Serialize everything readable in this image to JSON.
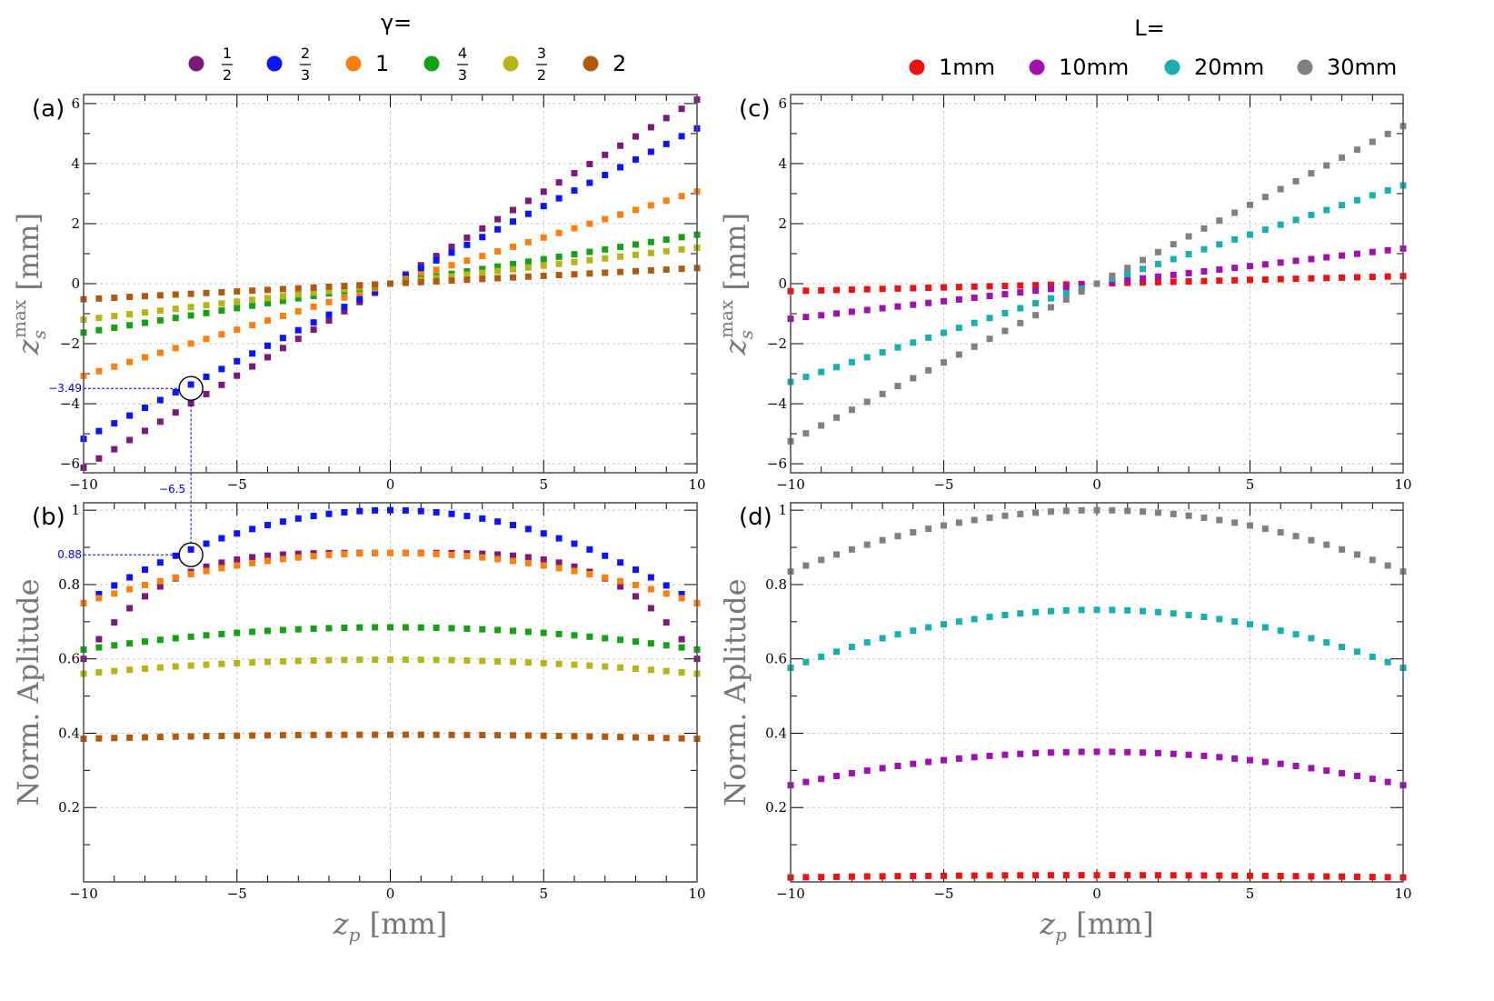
{
  "legends": {
    "gamma": {
      "title": "γ=",
      "items": [
        {
          "num": "1",
          "den": "2",
          "color": "#7b1a7b"
        },
        {
          "num": "2",
          "den": "3",
          "color": "#0a14ff"
        },
        {
          "label": "1",
          "color": "#ff7f0e"
        },
        {
          "num": "4",
          "den": "3",
          "color": "#16a016"
        },
        {
          "num": "3",
          "den": "2",
          "color": "#b5b515"
        },
        {
          "label": "2",
          "color": "#b05a10"
        }
      ]
    },
    "L": {
      "title": "L=",
      "items": [
        {
          "label": "1mm",
          "color": "#ee1111"
        },
        {
          "label": "10mm",
          "color": "#a010b0"
        },
        {
          "label": "20mm",
          "color": "#1aafaf"
        },
        {
          "label": "30mm",
          "color": "#808080"
        }
      ]
    }
  },
  "chart_data": [
    {
      "type": "scatter",
      "panel_label": "(a)",
      "ylabel": "z_s^max [mm]",
      "xlim": [
        -10,
        10
      ],
      "ylim": [
        -6.3,
        6.3
      ],
      "xticks": [
        -10,
        -5,
        0,
        5,
        10
      ],
      "yticks": [
        -6,
        -4,
        -2,
        0,
        2,
        4,
        6
      ],
      "x_tick_labels": [
        "−10",
        "−5",
        "0",
        "5",
        "10"
      ],
      "y_tick_labels": [
        "−6",
        "−4",
        "−2",
        "0",
        "2",
        "4",
        "6"
      ],
      "grid": true,
      "x": {
        "start": -10,
        "stop": 10,
        "step": 0.5
      },
      "series": [
        {
          "legend": "1/2",
          "color": "#7b1a7b",
          "kind": "linear",
          "slope": 0.613
        },
        {
          "legend": "2/3",
          "color": "#0a14ff",
          "kind": "linear",
          "slope": 0.517
        },
        {
          "legend": "1",
          "color": "#ff7f0e",
          "kind": "linear",
          "slope": 0.307
        },
        {
          "legend": "4/3",
          "color": "#16a016",
          "kind": "linear",
          "slope": 0.163
        },
        {
          "legend": "3/2",
          "color": "#b5b515",
          "kind": "linear",
          "slope": 0.12
        },
        {
          "legend": "2",
          "color": "#b05a10",
          "kind": "linear",
          "slope": 0.052
        }
      ],
      "annotation": {
        "x": -6.5,
        "y": -3.49,
        "x_text": "−6.5",
        "y_text": "−3.49"
      }
    },
    {
      "type": "scatter",
      "panel_label": "(b)",
      "ylabel": "Norm. Aplitude",
      "xlabel": "z_p [mm]",
      "xlim": [
        -10,
        10
      ],
      "ylim": [
        0,
        1.02
      ],
      "xticks": [
        -10,
        -5,
        0,
        5,
        10
      ],
      "yticks": [
        0.2,
        0.4,
        0.6,
        0.8,
        1.0
      ],
      "x_tick_labels": [
        "−10",
        "−5",
        "0",
        "5",
        "10"
      ],
      "y_tick_labels": [
        "0.2",
        "0.4",
        "0.6",
        "0.8",
        "1"
      ],
      "grid": true,
      "x": {
        "start": -10,
        "stop": 10,
        "step": 0.5
      },
      "series": [
        {
          "legend": "1/2",
          "color": "#7b1a7b",
          "kind": "quartic",
          "peak": 0.885,
          "edge": 0.6
        },
        {
          "legend": "2/3",
          "color": "#0a14ff",
          "kind": "quadratic",
          "peak": 1.0,
          "edge": 0.75
        },
        {
          "legend": "1",
          "color": "#ff7f0e",
          "kind": "quadratic",
          "peak": 0.885,
          "edge": 0.75
        },
        {
          "legend": "4/3",
          "color": "#16a016",
          "kind": "quadratic",
          "peak": 0.685,
          "edge": 0.625
        },
        {
          "legend": "3/2",
          "color": "#b5b515",
          "kind": "quadratic",
          "peak": 0.598,
          "edge": 0.56
        },
        {
          "legend": "2",
          "color": "#b05a10",
          "kind": "quadratic",
          "peak": 0.396,
          "edge": 0.385
        }
      ],
      "annotation": {
        "x": -6.5,
        "y": 0.88,
        "y_text": "0.88"
      }
    },
    {
      "type": "scatter",
      "panel_label": "(c)",
      "ylabel": "z_s^max [mm]",
      "xlim": [
        -10,
        10
      ],
      "ylim": [
        -6.3,
        6.3
      ],
      "xticks": [
        -10,
        -5,
        0,
        5,
        10
      ],
      "yticks": [
        -6,
        -4,
        -2,
        0,
        2,
        4,
        6
      ],
      "x_tick_labels": [
        "−10",
        "−5",
        "0",
        "5",
        "10"
      ],
      "y_tick_labels": [
        "−6",
        "−4",
        "−2",
        "0",
        "2",
        "4",
        "6"
      ],
      "grid": true,
      "x": {
        "start": -10,
        "stop": 10,
        "step": 0.5
      },
      "series": [
        {
          "legend": "1mm",
          "color": "#ee1111",
          "kind": "linear",
          "slope": 0.025
        },
        {
          "legend": "10mm",
          "color": "#a010b0",
          "kind": "linear",
          "slope": 0.117
        },
        {
          "legend": "20mm",
          "color": "#1aafaf",
          "kind": "linear",
          "slope": 0.327
        },
        {
          "legend": "30mm",
          "color": "#808080",
          "kind": "linear",
          "slope": 0.525
        }
      ]
    },
    {
      "type": "scatter",
      "panel_label": "(d)",
      "ylabel": "Norm. Aplitude",
      "xlabel": "z_p [mm]",
      "xlim": [
        -10,
        10
      ],
      "ylim": [
        0,
        1.02
      ],
      "xticks": [
        -10,
        -5,
        0,
        5,
        10
      ],
      "yticks": [
        0.2,
        0.4,
        0.6,
        0.8,
        1.0
      ],
      "x_tick_labels": [
        "−10",
        "−5",
        "0",
        "5",
        "10"
      ],
      "y_tick_labels": [
        "0.2",
        "0.4",
        "0.6",
        "0.8",
        "1"
      ],
      "grid": true,
      "x": {
        "start": -10,
        "stop": 10,
        "step": 0.5
      },
      "series": [
        {
          "legend": "1mm",
          "color": "#ee1111",
          "kind": "quadratic",
          "peak": 0.018,
          "edge": 0.012
        },
        {
          "legend": "10mm",
          "color": "#a010b0",
          "kind": "quadratic",
          "peak": 0.35,
          "edge": 0.26
        },
        {
          "legend": "20mm",
          "color": "#1aafaf",
          "kind": "quadratic",
          "peak": 0.732,
          "edge": 0.576
        },
        {
          "legend": "30mm",
          "color": "#808080",
          "kind": "quadratic",
          "peak": 1.0,
          "edge": 0.835
        }
      ]
    }
  ]
}
